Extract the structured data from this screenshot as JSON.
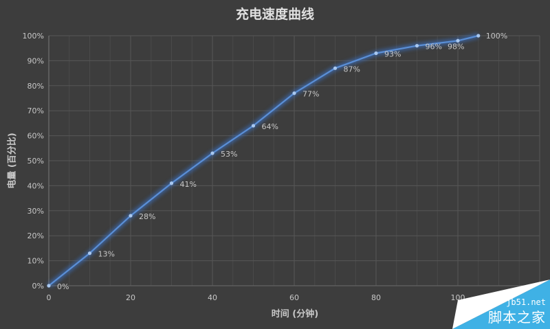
{
  "chart_data": {
    "type": "line",
    "title": "充电速度曲线",
    "xlabel": "时间 (分钟)",
    "ylabel": "电量 (百分比)",
    "x": [
      0,
      10,
      20,
      30,
      40,
      50,
      60,
      70,
      80,
      90,
      100,
      105
    ],
    "series": [
      {
        "name": "电量",
        "values": [
          0,
          13,
          28,
          41,
          53,
          64,
          77,
          87,
          93,
          96,
          98,
          100
        ],
        "labels": [
          "0%",
          "13%",
          "28%",
          "41%",
          "53%",
          "64%",
          "77%",
          "87%",
          "93%",
          "96%",
          "98%",
          "100%"
        ]
      }
    ],
    "xlim": [
      0,
      120
    ],
    "ylim": [
      0,
      100
    ],
    "x_ticks": [
      "0",
      "20",
      "40",
      "60",
      "80",
      "100",
      "120"
    ],
    "y_ticks": [
      "0%",
      "10%",
      "20%",
      "30%",
      "40%",
      "50%",
      "60%",
      "70%",
      "80%",
      "90%",
      "100%"
    ],
    "grid": true,
    "legend": "none"
  },
  "colors": {
    "background": "#3d3d3d",
    "line": "#5b8fd6",
    "glow": "#3a6fc0",
    "grid_major": "#575757",
    "grid_minor": "#4a4a4a",
    "text": "#c8c8c8",
    "watermark": "#3fb1e5"
  },
  "watermark": {
    "line1": "jb51.net",
    "line2": "脚本之家"
  }
}
